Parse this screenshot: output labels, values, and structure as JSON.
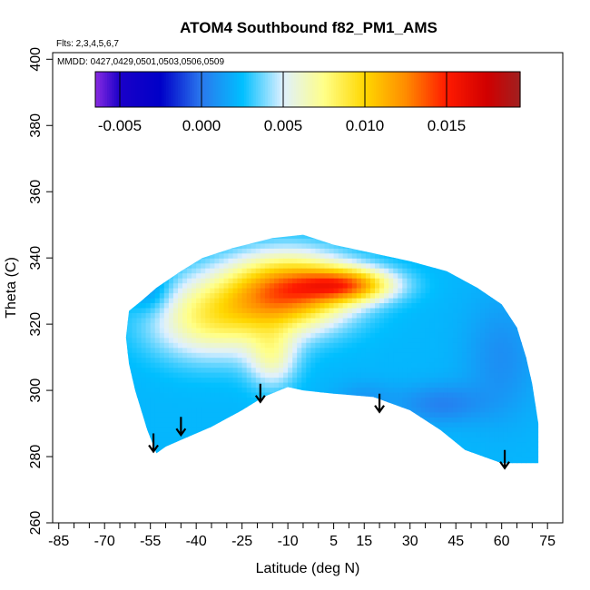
{
  "chart_data": {
    "type": "heatmap",
    "title": "ATOM4 Southbound f82_PM1_AMS",
    "flights_note": "Flts: 2,3,4,5,6,7",
    "dates_note": "MMDD: 0427,0429,0501,0503,0506,0509",
    "xlabel": "Latitude (deg N)",
    "ylabel": "Theta (C)",
    "xlim": [
      -87,
      80
    ],
    "ylim": [
      260,
      402
    ],
    "x_ticks_labeled": [
      -85,
      -70,
      -55,
      -40,
      -25,
      -10,
      5,
      15,
      30,
      45,
      60,
      75
    ],
    "x_ticks_minor": [
      -80,
      -75,
      -65,
      -60,
      -50,
      -45,
      -35,
      -30,
      -20,
      -15,
      -5,
      0,
      10,
      20,
      25,
      35,
      40,
      50,
      55,
      65,
      70
    ],
    "y_ticks": [
      260,
      280,
      300,
      320,
      340,
      360,
      380,
      400
    ],
    "colorbar": {
      "range": [
        -0.0065,
        0.0195
      ],
      "ticks": [
        -0.005,
        0.0,
        0.005,
        0.01,
        0.015
      ],
      "tick_labels": [
        "-0.005",
        "0.000",
        "0.005",
        "0.010",
        "0.015"
      ],
      "colors": [
        {
          "v": -0.0065,
          "c": "#8a2be2"
        },
        {
          "v": -0.005,
          "c": "#1a00c8"
        },
        {
          "v": -0.0025,
          "c": "#0000c8"
        },
        {
          "v": 0.0,
          "c": "#2a78ee"
        },
        {
          "v": 0.0025,
          "c": "#00bfff"
        },
        {
          "v": 0.005,
          "c": "#dff0ff"
        },
        {
          "v": 0.0075,
          "c": "#ffff88"
        },
        {
          "v": 0.01,
          "c": "#ffd700"
        },
        {
          "v": 0.0125,
          "c": "#ff8c00"
        },
        {
          "v": 0.015,
          "c": "#ff1a00"
        },
        {
          "v": 0.0175,
          "c": "#d00000"
        },
        {
          "v": 0.0195,
          "c": "#a02020"
        }
      ]
    },
    "grid": false,
    "field_outline": [
      [
        -62,
        324
      ],
      [
        -58,
        327
      ],
      [
        -53,
        331
      ],
      [
        -45,
        336
      ],
      [
        -38,
        340
      ],
      [
        -28,
        343
      ],
      [
        -15,
        346
      ],
      [
        -5,
        347
      ],
      [
        5,
        344
      ],
      [
        15,
        342
      ],
      [
        30,
        339
      ],
      [
        42,
        336
      ],
      [
        52,
        331
      ],
      [
        60,
        326
      ],
      [
        65,
        319
      ],
      [
        68,
        310
      ],
      [
        70,
        302
      ],
      [
        72,
        290
      ],
      [
        72,
        278
      ],
      [
        60,
        278
      ],
      [
        48,
        282
      ],
      [
        40,
        288
      ],
      [
        30,
        294
      ],
      [
        18,
        298
      ],
      [
        5,
        299
      ],
      [
        -5,
        300
      ],
      [
        -10,
        301
      ],
      [
        -18,
        298
      ],
      [
        -25,
        294
      ],
      [
        -35,
        289
      ],
      [
        -45,
        285
      ],
      [
        -50,
        283
      ],
      [
        -53,
        281
      ],
      [
        -56,
        288
      ],
      [
        -60,
        300
      ],
      [
        -62,
        308
      ],
      [
        -63,
        316
      ]
    ],
    "field_features": [
      {
        "kind": "background",
        "value": 0.0022
      },
      {
        "kind": "blob",
        "lat": -10,
        "theta": 330,
        "rlat": 20,
        "rtheta": 11,
        "value": 0.0128
      },
      {
        "kind": "blob",
        "lat": -35,
        "theta": 322,
        "rlat": 20,
        "rtheta": 12,
        "value": 0.0078
      },
      {
        "kind": "blob",
        "lat": 10,
        "theta": 332,
        "rlat": 15,
        "rtheta": 5,
        "value": 0.0106
      },
      {
        "kind": "blob",
        "lat": -15,
        "theta": 310,
        "rlat": 8,
        "rtheta": 9,
        "value": 0.006
      },
      {
        "kind": "blob",
        "lat": -55,
        "theta": 330,
        "rlat": 7,
        "rtheta": 7,
        "value": 0.0002
      },
      {
        "kind": "blob",
        "lat": 60,
        "theta": 310,
        "rlat": 12,
        "rtheta": 18,
        "value": 0.0008
      },
      {
        "kind": "blob",
        "lat": 40,
        "theta": 296,
        "rlat": 14,
        "rtheta": 6,
        "value": 0.0004
      },
      {
        "kind": "blob",
        "lat": 15,
        "theta": 298,
        "rlat": 10,
        "rtheta": 5,
        "value": 0.0012
      }
    ],
    "arrows": [
      {
        "lat": -54,
        "theta": 287
      },
      {
        "lat": -45,
        "theta": 292
      },
      {
        "lat": -19,
        "theta": 302
      },
      {
        "lat": 20,
        "theta": 299
      },
      {
        "lat": 61,
        "theta": 282
      }
    ]
  }
}
